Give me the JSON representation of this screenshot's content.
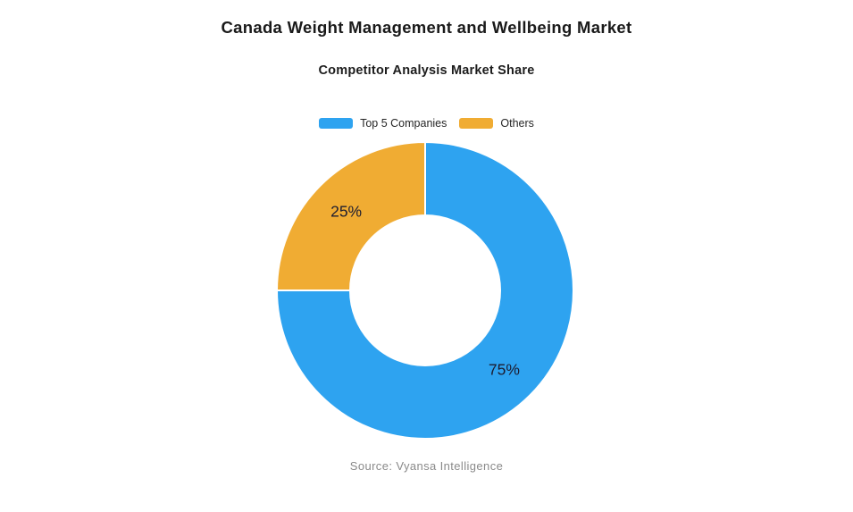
{
  "header": {
    "title": "Canada Weight Management and Wellbeing Market",
    "subtitle": "Competitor Analysis Market Share"
  },
  "chart_data": {
    "type": "pie",
    "title": "Competitor Analysis Market Share",
    "donut": true,
    "inner_radius_ratio": 0.5,
    "start_angle_deg": 0,
    "direction": "clockwise",
    "legend_position": "top",
    "legend_entries": [
      "Top 5 Companies",
      "Others"
    ],
    "segments": [
      {
        "label": "Top 5 Companies",
        "value": 75,
        "display": "75%",
        "color": "#2EA3F0"
      },
      {
        "label": "Others",
        "value": 25,
        "display": "25%",
        "color": "#F0AC33"
      }
    ],
    "label_color": "#1d1d30",
    "segment_border_color": "#ffffff"
  },
  "footer": {
    "source": "Source: Vyansa Intelligence"
  }
}
